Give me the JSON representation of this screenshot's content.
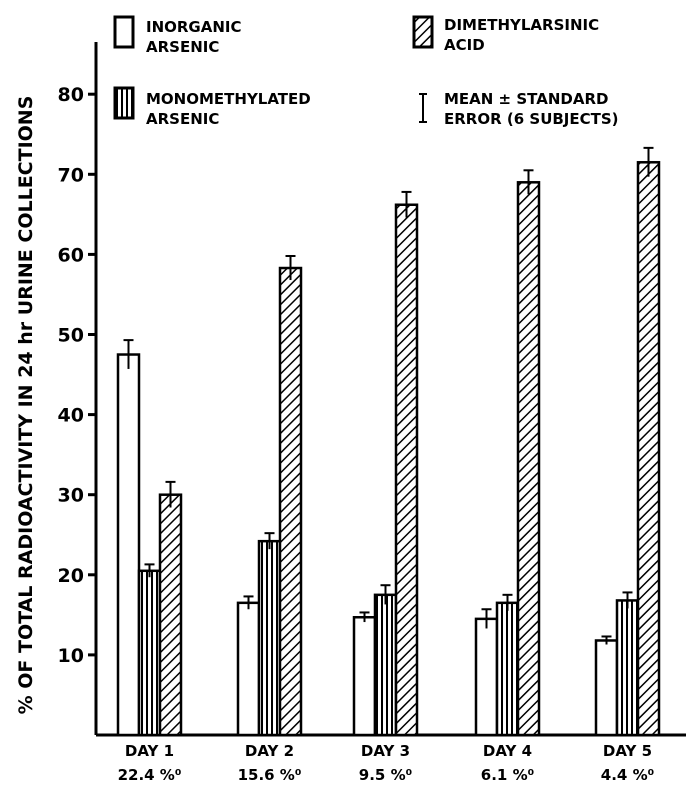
{
  "chart_data": {
    "type": "bar",
    "ylabel": "% OF TOTAL RADIOACTIVITY IN 24 hr URINE COLLECTIONS",
    "ylim": [
      0,
      88
    ],
    "yticks": [
      10,
      20,
      30,
      40,
      50,
      60,
      70,
      80
    ],
    "categories": [
      "DAY 1",
      "DAY 2",
      "DAY 3",
      "DAY 4",
      "DAY 5"
    ],
    "sublabels": [
      "22.4 %⁰",
      "15.6 %⁰",
      "9.5 %⁰",
      "6.1 %⁰",
      "4.4 %⁰"
    ],
    "series": [
      {
        "name": "INORGANIC ARSENIC",
        "pattern": "open",
        "values": [
          47.5,
          16.5,
          14.7,
          14.5,
          11.8
        ],
        "errors": [
          1.8,
          0.8,
          0.6,
          1.2,
          0.5
        ]
      },
      {
        "name": "MONOMETHYLATED ARSENIC",
        "pattern": "vertical",
        "values": [
          20.5,
          24.2,
          17.5,
          16.5,
          16.8
        ],
        "errors": [
          0.8,
          1.0,
          1.2,
          1.0,
          1.0
        ]
      },
      {
        "name": "DIMETHYLARSINIC ACID",
        "pattern": "diagonal",
        "values": [
          30,
          58.3,
          66.2,
          69,
          71.5
        ],
        "errors": [
          1.6,
          1.5,
          1.6,
          1.5,
          1.8
        ]
      }
    ],
    "legend": {
      "position": "top",
      "errorbar_label": "MEAN ± STANDARD ERROR (6 SUBJECTS)"
    },
    "grid": false
  }
}
